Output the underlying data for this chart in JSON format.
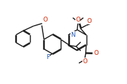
{
  "bg": "#ffffff",
  "bc": "#1c1c1c",
  "oc": "#cc2200",
  "nc": "#1a55bb",
  "fc": "#1a55bb",
  "lw": 1.05,
  "fs": 6.2,
  "figsize": [
    1.82,
    1.21
  ],
  "dpi": 100,
  "xlim": [
    -0.5,
    10.5
  ],
  "ylim": [
    -0.5,
    7.2
  ]
}
